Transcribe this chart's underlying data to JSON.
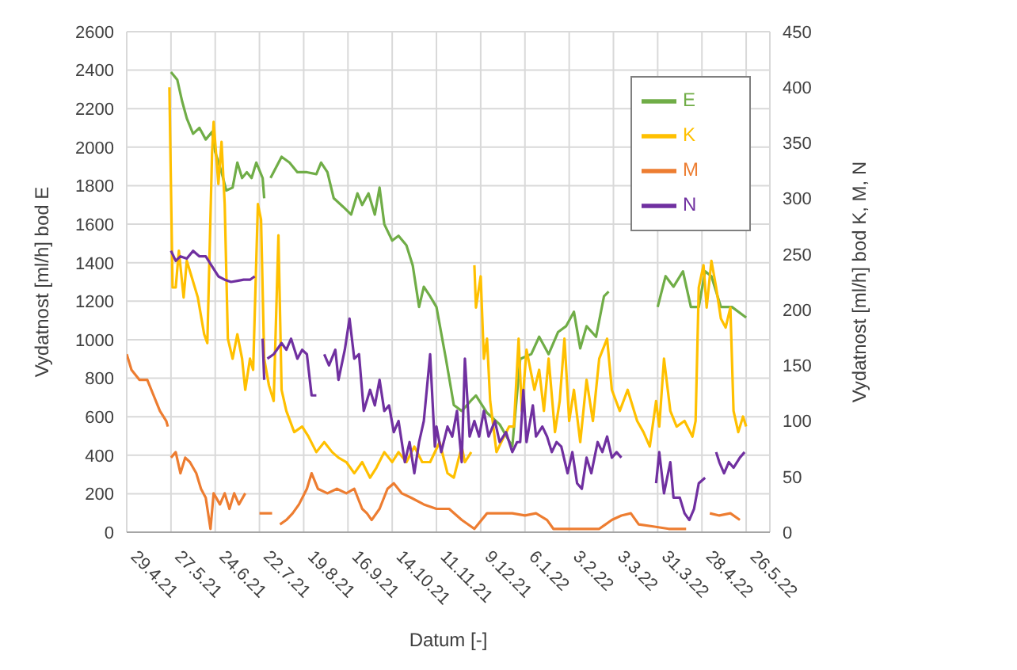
{
  "chart_data": {
    "type": "line",
    "xlabel": "Datum [-]",
    "ylabel": "Vydatnost [ml/h] bod E",
    "y2label": "Vydatnost [ml/h] bod K, M, N",
    "xlim": [
      "2021-04-29",
      "2022-06-10"
    ],
    "xticks": [
      {
        "value": "2021-04-29",
        "label": "29.4.21"
      },
      {
        "value": "2021-05-27",
        "label": "27.5.21"
      },
      {
        "value": "2021-06-24",
        "label": "24.6.21"
      },
      {
        "value": "2021-07-22",
        "label": "22.7.21"
      },
      {
        "value": "2021-08-19",
        "label": "19.8.21"
      },
      {
        "value": "2021-09-16",
        "label": "16.9.21"
      },
      {
        "value": "2021-10-14",
        "label": "14.10.21"
      },
      {
        "value": "2021-11-11",
        "label": "11.11.21"
      },
      {
        "value": "2021-12-09",
        "label": "9.12.21"
      },
      {
        "value": "2022-01-06",
        "label": "6.1.22"
      },
      {
        "value": "2022-02-03",
        "label": "3.2.22"
      },
      {
        "value": "2022-03-03",
        "label": "3.3.22"
      },
      {
        "value": "2022-03-31",
        "label": "31.3.22"
      },
      {
        "value": "2022-04-28",
        "label": "28.4.22"
      },
      {
        "value": "2022-05-26",
        "label": "26.5.22"
      }
    ],
    "ylim": [
      0,
      2600
    ],
    "yticks": [
      0,
      200,
      400,
      600,
      800,
      1000,
      1200,
      1400,
      1600,
      1800,
      2000,
      2200,
      2400,
      2600
    ],
    "y2lim": [
      0,
      450
    ],
    "y2ticks": [
      0,
      50,
      100,
      150,
      200,
      250,
      300,
      350,
      400,
      450
    ],
    "grid": true,
    "legend": "top right",
    "series": [
      {
        "name": "E",
        "color": "#70ad47",
        "x": [
          "2021-05-27",
          "2021-05-31",
          "2021-06-03",
          "2021-06-06",
          "2021-06-10",
          "2021-06-14",
          "2021-06-18",
          "2021-06-22",
          "2021-06-24",
          "2021-06-28",
          "2021-07-01",
          "2021-07-05",
          "2021-07-08",
          "2021-07-11",
          "2021-07-14",
          "2021-07-17",
          "2021-07-20",
          "2021-07-24",
          "2021-07-25",
          "2021-07-27",
          "2021-07-29",
          "2021-08-05",
          "2021-08-10",
          "2021-08-15",
          "2021-08-21",
          "2021-08-27",
          "2021-08-30",
          "2021-09-03",
          "2021-09-07",
          "2021-09-13",
          "2021-09-18",
          "2021-09-22",
          "2021-09-25",
          "2021-09-29",
          "2021-10-03",
          "2021-10-06",
          "2021-10-09",
          "2021-10-14",
          "2021-10-18",
          "2021-10-23",
          "2021-10-27",
          "2021-10-31",
          "2021-11-03",
          "2021-11-07",
          "2021-11-11",
          "2021-11-17",
          "2021-11-22",
          "2021-11-27",
          "2021-12-03",
          "2021-12-06",
          "2021-12-13",
          "2021-12-21",
          "2021-12-29",
          "2022-01-03",
          "2022-01-10",
          "2022-01-15",
          "2022-01-21",
          "2022-01-27",
          "2022-02-01",
          "2022-02-06",
          "2022-02-10",
          "2022-02-14",
          "2022-02-20",
          "2022-02-25",
          "2022-02-28",
          "2022-03-15",
          "2022-03-31",
          "2022-04-05",
          "2022-04-10",
          "2022-04-16",
          "2022-04-21",
          "2022-04-26",
          "2022-04-30",
          "2022-05-04",
          "2022-05-10",
          "2022-05-17",
          "2022-05-26"
        ],
        "values": [
          2390,
          2350,
          2240,
          2150,
          2070,
          2100,
          2040,
          2080,
          1975,
          1870,
          1775,
          1790,
          1920,
          1840,
          1870,
          1840,
          1920,
          1840,
          1735,
          null,
          1840,
          1950,
          1920,
          1870,
          1870,
          1860,
          1920,
          1870,
          1735,
          1690,
          1650,
          1760,
          1700,
          1760,
          1650,
          1790,
          1600,
          1515,
          1540,
          1490,
          1385,
          1170,
          1275,
          1225,
          1170,
          900,
          660,
          630,
          685,
          710,
          620,
          560,
          445,
          900,
          925,
          1015,
          925,
          1040,
          1070,
          1145,
          955,
          1070,
          1015,
          1225,
          1250,
          null,
          1170,
          1330,
          1275,
          1355,
          1170,
          1170,
          1355,
          1330,
          1170,
          1170,
          1115
        ]
      },
      {
        "name": "K",
        "color": "#ffc000",
        "axis": "y2",
        "x": [
          "2021-05-26",
          "2021-05-28",
          "2021-05-30",
          "2021-06-01",
          "2021-06-04",
          "2021-06-06",
          "2021-06-09",
          "2021-06-13",
          "2021-06-17",
          "2021-06-19",
          "2021-06-22",
          "2021-06-23",
          "2021-06-26",
          "2021-06-28",
          "2021-06-30",
          "2021-07-02",
          "2021-07-05",
          "2021-07-08",
          "2021-07-11",
          "2021-07-13",
          "2021-07-16",
          "2021-07-18",
          "2021-07-21",
          "2021-07-23",
          "2021-07-25",
          "2021-07-28",
          "2021-07-31",
          "2021-08-03",
          "2021-08-05",
          "2021-08-08",
          "2021-08-13",
          "2021-08-18",
          "2021-08-22",
          "2021-08-27",
          "2021-09-01",
          "2021-09-06",
          "2021-09-10",
          "2021-09-15",
          "2021-09-20",
          "2021-09-25",
          "2021-09-30",
          "2021-10-04",
          "2021-10-09",
          "2021-10-14",
          "2021-10-18",
          "2021-10-23",
          "2021-10-28",
          "2021-11-02",
          "2021-11-07",
          "2021-11-13",
          "2021-11-18",
          "2021-11-22",
          "2021-11-27",
          "2021-11-29",
          "2021-12-03",
          "2021-12-04",
          "2021-12-05",
          "2021-12-06",
          "2021-12-09",
          "2021-12-11",
          "2021-12-13",
          "2021-12-15",
          "2021-12-19",
          "2021-12-22",
          "2021-12-27",
          "2021-12-30",
          "2022-01-02",
          "2022-01-04",
          "2022-01-07",
          "2022-01-12",
          "2022-01-15",
          "2022-01-18",
          "2022-01-21",
          "2022-01-25",
          "2022-01-28",
          "2022-01-31",
          "2022-02-03",
          "2022-02-06",
          "2022-02-10",
          "2022-02-14",
          "2022-02-18",
          "2022-02-22",
          "2022-02-27",
          "2022-03-02",
          "2022-03-07",
          "2022-03-12",
          "2022-03-18",
          "2022-03-22",
          "2022-03-26",
          "2022-03-30",
          "2022-04-01",
          "2022-04-04",
          "2022-04-08",
          "2022-04-12",
          "2022-04-17",
          "2022-04-22",
          "2022-04-24",
          "2022-04-26",
          "2022-04-29",
          "2022-05-01",
          "2022-05-04",
          "2022-05-07",
          "2022-05-10",
          "2022-05-13",
          "2022-05-16",
          "2022-05-18",
          "2022-05-21",
          "2022-05-24",
          "2022-05-26"
        ],
        "values": [
          400,
          220,
          220,
          253,
          211,
          244,
          230,
          211,
          178,
          170,
          341,
          369,
          313,
          351,
          295,
          174,
          156,
          178,
          156,
          128,
          156,
          146,
          295,
          281,
          156,
          132,
          118,
          267,
          128,
          109,
          90,
          95,
          86,
          72,
          81,
          72,
          67,
          63,
          53,
          63,
          49,
          58,
          72,
          63,
          72,
          63,
          77,
          63,
          63,
          81,
          53,
          49,
          77,
          63,
          72,
          null,
          240,
          202,
          230,
          156,
          174,
          118,
          72,
          81,
          95,
          95,
          174,
          109,
          164,
          128,
          146,
          109,
          156,
          90,
          118,
          174,
          100,
          128,
          81,
          137,
          100,
          156,
          174,
          128,
          109,
          128,
          100,
          90,
          77,
          118,
          95,
          156,
          109,
          95,
          100,
          86,
          100,
          220,
          240,
          202,
          244,
          220,
          192,
          184,
          202,
          109,
          90,
          104,
          95
        ]
      },
      {
        "name": "M",
        "color": "#ed7d31",
        "axis": "y2",
        "x": [
          "2021-04-29",
          "2021-05-02",
          "2021-05-07",
          "2021-05-12",
          "2021-05-16",
          "2021-05-20",
          "2021-05-24",
          "2021-05-25",
          "2021-05-26",
          "2021-05-27",
          "2021-05-30",
          "2021-06-02",
          "2021-06-05",
          "2021-06-08",
          "2021-06-12",
          "2021-06-15",
          "2021-06-18",
          "2021-06-21",
          "2021-06-23",
          "2021-06-27",
          "2021-06-30",
          "2021-07-03",
          "2021-07-06",
          "2021-07-09",
          "2021-07-13",
          "2021-07-16",
          "2021-07-22",
          "2021-07-30",
          "2021-08-02",
          "2021-08-04",
          "2021-08-08",
          "2021-08-12",
          "2021-08-16",
          "2021-08-21",
          "2021-08-24",
          "2021-08-28",
          "2021-09-03",
          "2021-09-09",
          "2021-09-15",
          "2021-09-20",
          "2021-09-25",
          "2021-09-28",
          "2021-10-01",
          "2021-10-06",
          "2021-10-11",
          "2021-10-15",
          "2021-10-20",
          "2021-10-26",
          "2021-11-03",
          "2021-11-11",
          "2021-11-19",
          "2021-11-27",
          "2021-12-05",
          "2021-12-13",
          "2021-12-21",
          "2021-12-29",
          "2022-01-06",
          "2022-01-13",
          "2022-01-20",
          "2022-01-24",
          "2022-01-29",
          "2022-02-06",
          "2022-02-14",
          "2022-02-22",
          "2022-03-02",
          "2022-03-08",
          "2022-03-14",
          "2022-03-19",
          "2022-03-29",
          "2022-04-07",
          "2022-04-18",
          "2022-04-25",
          "2022-05-03",
          "2022-05-09",
          "2022-05-16",
          "2022-05-22"
        ],
        "values": [
          160,
          146,
          137,
          137,
          123,
          109,
          100,
          95,
          null,
          67,
          72,
          53,
          67,
          63,
          53,
          39,
          31,
          3,
          35,
          25,
          35,
          21,
          35,
          25,
          35,
          null,
          17,
          17,
          null,
          7,
          11,
          17,
          25,
          39,
          53,
          39,
          35,
          39,
          35,
          39,
          21,
          17,
          11,
          21,
          39,
          44,
          35,
          31,
          25,
          21,
          21,
          11,
          3,
          17,
          17,
          17,
          15,
          17,
          11,
          3,
          3,
          3,
          3,
          3,
          11,
          15,
          17,
          7,
          5,
          3,
          3,
          null,
          17,
          15,
          17,
          11
        ]
      },
      {
        "name": "N",
        "color": "#7030a0",
        "axis": "y2",
        "x": [
          "2021-05-27",
          "2021-05-30",
          "2021-06-02",
          "2021-06-06",
          "2021-06-10",
          "2021-06-14",
          "2021-06-18",
          "2021-06-22",
          "2021-06-26",
          "2021-06-30",
          "2021-07-04",
          "2021-07-08",
          "2021-07-12",
          "2021-07-16",
          "2021-07-19",
          "2021-07-21",
          "2021-07-24",
          "2021-07-25",
          "2021-07-26",
          "2021-07-27",
          "2021-07-31",
          "2021-08-05",
          "2021-08-08",
          "2021-08-11",
          "2021-08-15",
          "2021-08-18",
          "2021-08-21",
          "2021-08-24",
          "2021-08-27",
          "2021-08-29",
          "2021-09-01",
          "2021-09-04",
          "2021-09-08",
          "2021-09-10",
          "2021-09-14",
          "2021-09-17",
          "2021-09-20",
          "2021-09-23",
          "2021-09-26",
          "2021-09-30",
          "2021-10-03",
          "2021-10-06",
          "2021-10-09",
          "2021-10-12",
          "2021-10-15",
          "2021-10-18",
          "2021-10-22",
          "2021-10-25",
          "2021-10-28",
          "2021-10-31",
          "2021-11-03",
          "2021-11-07",
          "2021-11-10",
          "2021-11-11",
          "2021-11-14",
          "2021-11-18",
          "2021-11-21",
          "2021-11-24",
          "2021-11-27",
          "2021-11-29",
          "2021-12-02",
          "2021-12-05",
          "2021-12-08",
          "2021-12-11",
          "2021-12-14",
          "2021-12-18",
          "2021-12-21",
          "2021-12-25",
          "2021-12-29",
          "2022-01-01",
          "2022-01-03",
          "2022-01-05",
          "2022-01-07",
          "2022-01-11",
          "2022-01-13",
          "2022-01-17",
          "2022-01-20",
          "2022-01-23",
          "2022-01-26",
          "2022-01-29",
          "2022-02-02",
          "2022-02-05",
          "2022-02-08",
          "2022-02-11",
          "2022-02-14",
          "2022-02-17",
          "2022-02-21",
          "2022-02-24",
          "2022-02-27",
          "2022-03-02",
          "2022-03-05",
          "2022-03-08",
          "2022-03-20",
          "2022-03-30",
          "2022-04-01",
          "2022-04-04",
          "2022-04-08",
          "2022-04-10",
          "2022-04-14",
          "2022-04-17",
          "2022-04-20",
          "2022-04-23",
          "2022-04-26",
          "2022-04-30",
          "2022-05-03",
          "2022-05-07",
          "2022-05-09",
          "2022-05-12",
          "2022-05-15",
          "2022-05-18",
          "2022-05-22",
          "2022-05-25"
        ],
        "values": [
          253,
          244,
          248,
          246,
          253,
          248,
          248,
          239,
          230,
          227,
          225,
          226,
          227,
          227,
          230,
          null,
          174,
          137,
          null,
          156,
          160,
          170,
          164,
          174,
          156,
          164,
          160,
          123,
          123,
          null,
          160,
          150,
          164,
          137,
          164,
          192,
          156,
          160,
          109,
          128,
          114,
          137,
          109,
          114,
          90,
          100,
          63,
          81,
          53,
          81,
          100,
          160,
          77,
          95,
          72,
          95,
          86,
          109,
          63,
          156,
          86,
          100,
          86,
          109,
          86,
          100,
          81,
          90,
          72,
          81,
          81,
          128,
          81,
          114,
          86,
          95,
          86,
          72,
          81,
          77,
          53,
          72,
          44,
          39,
          67,
          53,
          81,
          72,
          86,
          67,
          72,
          67,
          null,
          44,
          72,
          35,
          63,
          31,
          31,
          17,
          11,
          21,
          44,
          49,
          null,
          72,
          63,
          53,
          63,
          58,
          67,
          72
        ]
      }
    ]
  }
}
